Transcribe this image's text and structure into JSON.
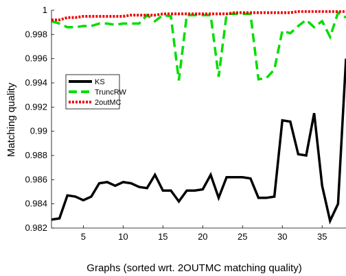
{
  "chart_data": {
    "type": "line",
    "xlabel": "Graphs (sorted wrt. 2OUTMC matching quality)",
    "ylabel": "Matching quality",
    "xlim": [
      1,
      38
    ],
    "ylim": [
      0.982,
      1.0
    ],
    "xticks": [
      5,
      10,
      15,
      20,
      25,
      30,
      35
    ],
    "yticks": [
      {
        "v": 0.982,
        "label": "0.982"
      },
      {
        "v": 0.984,
        "label": "0.984"
      },
      {
        "v": 0.986,
        "label": "0.986"
      },
      {
        "v": 0.988,
        "label": "0.988"
      },
      {
        "v": 0.99,
        "label": "0.99"
      },
      {
        "v": 0.992,
        "label": "0.992"
      },
      {
        "v": 0.994,
        "label": "0.994"
      },
      {
        "v": 0.996,
        "label": "0.996"
      },
      {
        "v": 0.998,
        "label": "0.998"
      },
      {
        "v": 1.0,
        "label": "1"
      }
    ],
    "grid": false,
    "legend_position": "left-middle",
    "x": [
      1,
      2,
      3,
      4,
      5,
      6,
      7,
      8,
      9,
      10,
      11,
      12,
      13,
      14,
      15,
      16,
      17,
      18,
      19,
      20,
      21,
      22,
      23,
      24,
      25,
      26,
      27,
      28,
      29,
      30,
      31,
      32,
      33,
      34,
      35,
      36,
      37,
      38
    ],
    "series": [
      {
        "name": "KS",
        "color": "#000000",
        "style": "solid",
        "values": [
          0.9827,
          0.9828,
          0.9847,
          0.9846,
          0.9843,
          0.9846,
          0.9857,
          0.9858,
          0.9855,
          0.9858,
          0.9857,
          0.9854,
          0.9853,
          0.9864,
          0.9851,
          0.9851,
          0.9842,
          0.9851,
          0.9851,
          0.9852,
          0.9864,
          0.9845,
          0.9862,
          0.9862,
          0.9862,
          0.9861,
          0.9845,
          0.9845,
          0.9846,
          0.9909,
          0.9908,
          0.9881,
          0.988,
          0.9915,
          0.9855,
          0.9826,
          0.984,
          0.996
        ]
      },
      {
        "name": "TruncRW",
        "color": "#00dd00",
        "style": "dashed",
        "values": [
          0.9991,
          0.9989,
          0.9986,
          0.9986,
          0.9987,
          0.9987,
          0.9989,
          0.9989,
          0.9988,
          0.9989,
          0.9989,
          0.9989,
          0.9996,
          0.9991,
          0.9996,
          0.9995,
          0.9942,
          0.9996,
          0.9996,
          0.9996,
          0.9996,
          0.9945,
          0.9997,
          0.9997,
          0.9997,
          0.9997,
          0.9943,
          0.9944,
          0.9951,
          0.9983,
          0.9981,
          0.9987,
          0.9992,
          0.9986,
          0.9991,
          0.9978,
          0.9998,
          0.9994
        ]
      },
      {
        "name": "2outMC",
        "color": "#ee0000",
        "style": "dotted",
        "values": [
          0.9992,
          0.9992,
          0.9994,
          0.9994,
          0.9995,
          0.9995,
          0.9995,
          0.9995,
          0.9995,
          0.9995,
          0.9996,
          0.9996,
          0.9996,
          0.9996,
          0.9997,
          0.9997,
          0.9997,
          0.9997,
          0.9997,
          0.9997,
          0.9997,
          0.9997,
          0.9997,
          0.9998,
          0.9998,
          0.9998,
          0.9998,
          0.9998,
          0.9998,
          0.9998,
          0.9998,
          0.9999,
          0.9999,
          0.9999,
          0.9999,
          0.9999,
          0.9999,
          0.9999
        ]
      }
    ]
  }
}
